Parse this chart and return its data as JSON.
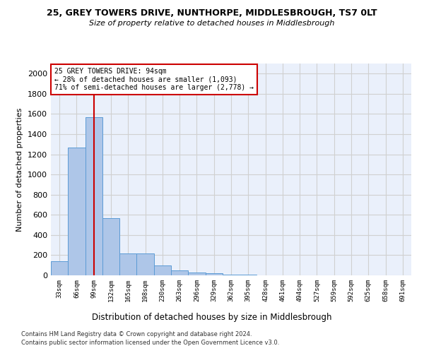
{
  "title1": "25, GREY TOWERS DRIVE, NUNTHORPE, MIDDLESBROUGH, TS7 0LT",
  "title2": "Size of property relative to detached houses in Middlesbrough",
  "xlabel": "Distribution of detached houses by size in Middlesbrough",
  "ylabel": "Number of detached properties",
  "footer1": "Contains HM Land Registry data © Crown copyright and database right 2024.",
  "footer2": "Contains public sector information licensed under the Open Government Licence v3.0.",
  "annotation_title": "25 GREY TOWERS DRIVE: 94sqm",
  "annotation_line1": "← 28% of detached houses are smaller (1,093)",
  "annotation_line2": "71% of semi-detached houses are larger (2,778) →",
  "bar_categories": [
    "33sqm",
    "66sqm",
    "99sqm",
    "132sqm",
    "165sqm",
    "198sqm",
    "230sqm",
    "263sqm",
    "296sqm",
    "329sqm",
    "362sqm",
    "395sqm",
    "428sqm",
    "461sqm",
    "494sqm",
    "527sqm",
    "559sqm",
    "592sqm",
    "625sqm",
    "658sqm",
    "691sqm"
  ],
  "bar_values": [
    140,
    1265,
    1565,
    570,
    220,
    220,
    95,
    50,
    30,
    18,
    10,
    5,
    0,
    0,
    0,
    0,
    0,
    0,
    0,
    0,
    0
  ],
  "bar_color": "#aec6e8",
  "bar_edge_color": "#5b9bd5",
  "vline_color": "#cc0000",
  "vline_x": 2,
  "annotation_box_color": "#cc0000",
  "ylim": [
    0,
    2100
  ],
  "yticks": [
    0,
    200,
    400,
    600,
    800,
    1000,
    1200,
    1400,
    1600,
    1800,
    2000
  ],
  "grid_color": "#d0d0d0",
  "plot_bg_color": "#eaf0fb"
}
